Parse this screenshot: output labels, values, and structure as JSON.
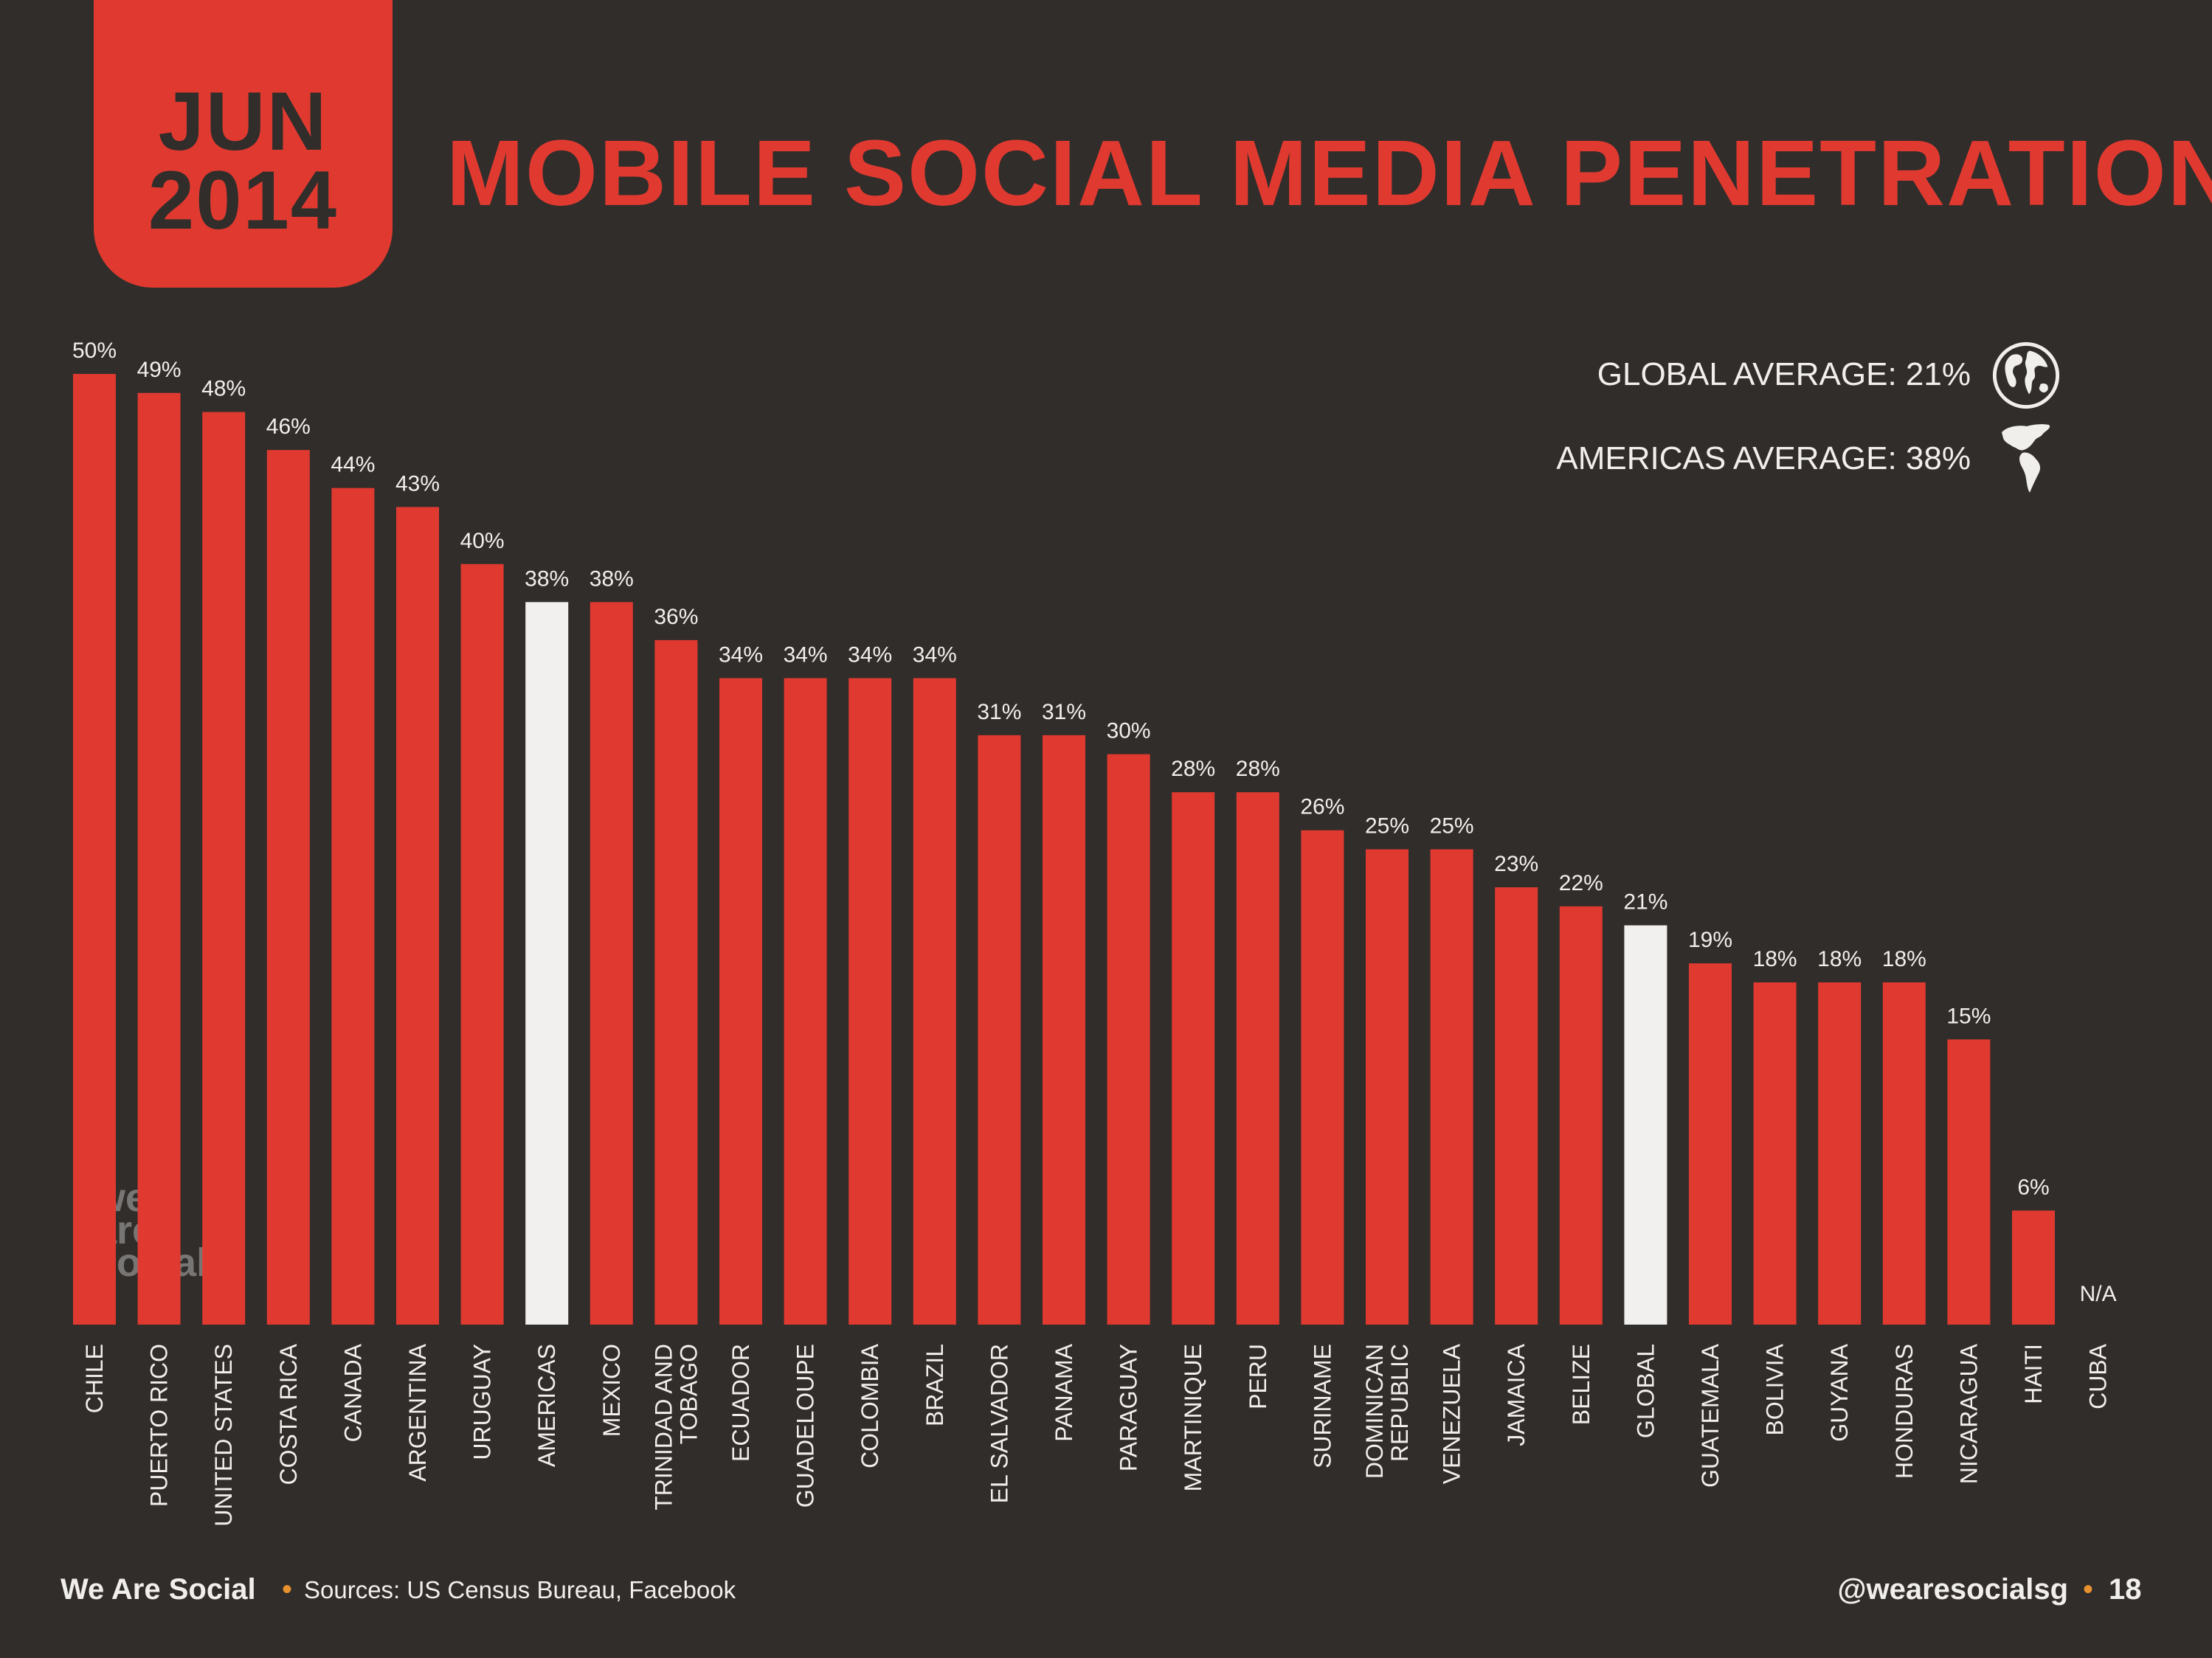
{
  "header": {
    "month": "JUN",
    "year": "2014",
    "title": "MOBILE SOCIAL MEDIA PENETRATION"
  },
  "averages": {
    "global": "GLOBAL AVERAGE: 21%",
    "americas": "AMERICAS AVERAGE: 38%"
  },
  "watermark": [
    "we",
    "are",
    "social"
  ],
  "footer": {
    "brand": "We Are Social",
    "dot": "•",
    "sources": "Sources: US Census Bureau, Facebook",
    "handle": "@wearesocialsg",
    "page": "18"
  },
  "colors": {
    "background": "#312d2b",
    "bar": "#e03a30",
    "highlight_bar": "#f1f0ee",
    "text": "#f1efec",
    "accent": "#e8912f"
  },
  "chart_data": {
    "type": "bar",
    "title": "MOBILE SOCIAL MEDIA PENETRATION",
    "xlabel": "",
    "ylabel": "",
    "ylim": [
      0,
      50
    ],
    "grid": false,
    "categories": [
      [
        "CHILE"
      ],
      [
        "PUERTO RICO"
      ],
      [
        "UNITED STATES"
      ],
      [
        "COSTA RICA"
      ],
      [
        "CANADA"
      ],
      [
        "ARGENTINA"
      ],
      [
        "URUGUAY"
      ],
      [
        "AMERICAS"
      ],
      [
        "MEXICO"
      ],
      [
        "TRINIDAD AND",
        "TOBAGO"
      ],
      [
        "ECUADOR"
      ],
      [
        "GUADELOUPE"
      ],
      [
        "COLOMBIA"
      ],
      [
        "BRAZIL"
      ],
      [
        "EL SALVADOR"
      ],
      [
        "PANAMA"
      ],
      [
        "PARAGUAY"
      ],
      [
        "MARTINIQUE"
      ],
      [
        "PERU"
      ],
      [
        "SURINAME"
      ],
      [
        "DOMINICAN",
        "REPUBLIC"
      ],
      [
        "VENEZUELA"
      ],
      [
        "JAMAICA"
      ],
      [
        "BELIZE"
      ],
      [
        "GLOBAL"
      ],
      [
        "GUATEMALA"
      ],
      [
        "BOLIVIA"
      ],
      [
        "GUYANA"
      ],
      [
        "HONDURAS"
      ],
      [
        "NICARAGUA"
      ],
      [
        "HAITI"
      ],
      [
        "CUBA"
      ]
    ],
    "values": [
      50,
      49,
      48,
      46,
      44,
      43,
      40,
      38,
      38,
      36,
      34,
      34,
      34,
      34,
      31,
      31,
      30,
      28,
      28,
      26,
      25,
      25,
      23,
      22,
      21,
      19,
      18,
      18,
      18,
      15,
      6,
      null
    ],
    "value_labels": [
      "50%",
      "49%",
      "48%",
      "46%",
      "44%",
      "43%",
      "40%",
      "38%",
      "38%",
      "36%",
      "34%",
      "34%",
      "34%",
      "34%",
      "31%",
      "31%",
      "30%",
      "28%",
      "28%",
      "26%",
      "25%",
      "25%",
      "23%",
      "22%",
      "21%",
      "19%",
      "18%",
      "18%",
      "18%",
      "15%",
      "6%",
      "N/A"
    ],
    "highlighted": [
      "AMERICAS",
      "GLOBAL"
    ]
  }
}
